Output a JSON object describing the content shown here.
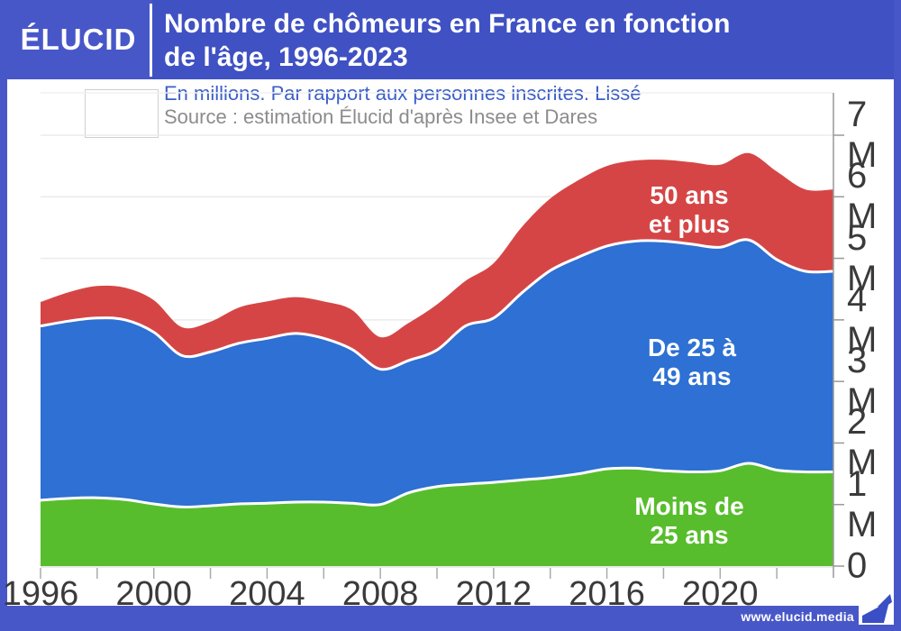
{
  "header": {
    "logo": "ÉLUCID",
    "title_line1": "Nombre de chômeurs en France en fonction",
    "title_line2": "de l'âge, 1996-2023"
  },
  "subtitle": {
    "line1": "En millions. Par rapport aux personnes inscrites. Lissé",
    "line2": "Source : estimation Élucid d'après Insee et Dares"
  },
  "flag": {
    "name": "drapeau-france",
    "colors": [
      "#232a68",
      "#ffffff",
      "#ce1126"
    ]
  },
  "footer": {
    "url": "www.elucid.media"
  },
  "colors": {
    "frame_blue": "#4857c8",
    "title_box_blue": "#3f51c3",
    "subtitle_blue": "#3b5fc8",
    "source_gray": "#8c8c8c",
    "axis_text": "#3a3a3a",
    "green": "#58bd2c",
    "blue": "#2e70d3",
    "red": "#d64545"
  },
  "chart_data": {
    "type": "area",
    "stacked": true,
    "title": "Nombre de chômeurs en France en fonction de l'âge, 1996-2023",
    "unit": "millions",
    "x": [
      1996,
      1997,
      1998,
      1999,
      2000,
      2001,
      2002,
      2003,
      2004,
      2005,
      2006,
      2007,
      2008,
      2009,
      2010,
      2011,
      2012,
      2013,
      2014,
      2015,
      2016,
      2017,
      2018,
      2019,
      2020,
      2021,
      2022,
      2023
    ],
    "series": [
      {
        "name": "Moins de 25 ans",
        "label_lines": [
          "Moins de",
          "25 ans"
        ],
        "color": "#58bd2c",
        "values": [
          1.07,
          1.1,
          1.11,
          1.08,
          1.01,
          0.96,
          0.98,
          1.01,
          1.02,
          1.04,
          1.04,
          1.02,
          1.0,
          1.19,
          1.29,
          1.33,
          1.36,
          1.4,
          1.44,
          1.5,
          1.58,
          1.59,
          1.55,
          1.53,
          1.55,
          1.67,
          1.56,
          1.53
        ]
      },
      {
        "name": "De 25 à 49 ans",
        "label_lines": [
          "De 25 à",
          "49 ans"
        ],
        "color": "#2e70d3",
        "values": [
          2.83,
          2.88,
          2.92,
          2.92,
          2.79,
          2.46,
          2.5,
          2.61,
          2.68,
          2.74,
          2.66,
          2.5,
          2.2,
          2.15,
          2.22,
          2.57,
          2.67,
          3.04,
          3.36,
          3.52,
          3.62,
          3.69,
          3.73,
          3.7,
          3.63,
          3.63,
          3.42,
          3.26
        ]
      },
      {
        "name": "50 ans et plus",
        "label_lines": [
          "50 ans",
          "et plus"
        ],
        "color": "#d64545",
        "values": [
          0.39,
          0.47,
          0.52,
          0.52,
          0.52,
          0.46,
          0.49,
          0.58,
          0.6,
          0.59,
          0.6,
          0.64,
          0.52,
          0.61,
          0.74,
          0.73,
          0.89,
          1.07,
          1.17,
          1.25,
          1.3,
          1.31,
          1.32,
          1.33,
          1.34,
          1.41,
          1.43,
          1.33
        ]
      }
    ],
    "ylim": [
      0,
      7
    ],
    "ytick_labels": [
      "0",
      "1 M",
      "2 M",
      "3 M",
      "4 M",
      "5 M",
      "6 M",
      "7 M"
    ],
    "xtick_years": [
      1996,
      2000,
      2004,
      2008,
      2012,
      2016,
      2020
    ],
    "grid": true,
    "legend_position": "labels-inside-areas",
    "y_axis_side": "right"
  }
}
